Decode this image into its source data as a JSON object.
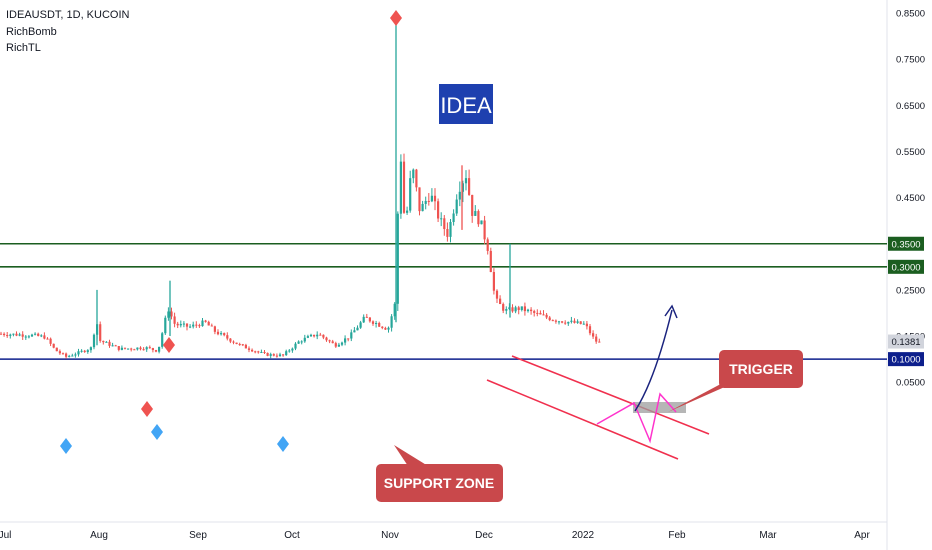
{
  "legend": {
    "symbol_line": "IDEAUSDT, 1D, KUCOIN",
    "indicators": [
      "RichBomb",
      "RichTL"
    ]
  },
  "chart_data": {
    "type": "candlestick",
    "x_axis_ticks": [
      "Jul",
      "Aug",
      "Sep",
      "Oct",
      "Nov",
      "Dec",
      "2022",
      "Feb",
      "Mar",
      "Apr"
    ],
    "y_axis_ticks": [
      "0.8500",
      "0.7500",
      "0.6500",
      "0.5500",
      "0.4500",
      "0.3500",
      "0.3000",
      "0.2500",
      "0.1500",
      "0.1381",
      "0.1000",
      "0.0500"
    ],
    "horizontal_levels": [
      {
        "price": 0.35,
        "label": "0.3500",
        "color": "#1b5e20"
      },
      {
        "price": 0.3,
        "label": "0.3000",
        "color": "#1b5e20"
      },
      {
        "price": 0.1,
        "label": "0.1000",
        "color": "#0d1f8c"
      }
    ],
    "last_price": {
      "price": 0.1381,
      "label": "0.1381"
    },
    "annotations": {
      "title_badge": "IDEA",
      "trigger": "TRIGGER",
      "support_zone": "SUPPORT ZONE"
    },
    "colors": {
      "up": "#26a69a",
      "down": "#ef5350",
      "channel": "#f0304e",
      "projection": "#ff33cc",
      "arrow": "#1a237e",
      "badge": "#1e40af",
      "callout": "#c9484b"
    }
  }
}
